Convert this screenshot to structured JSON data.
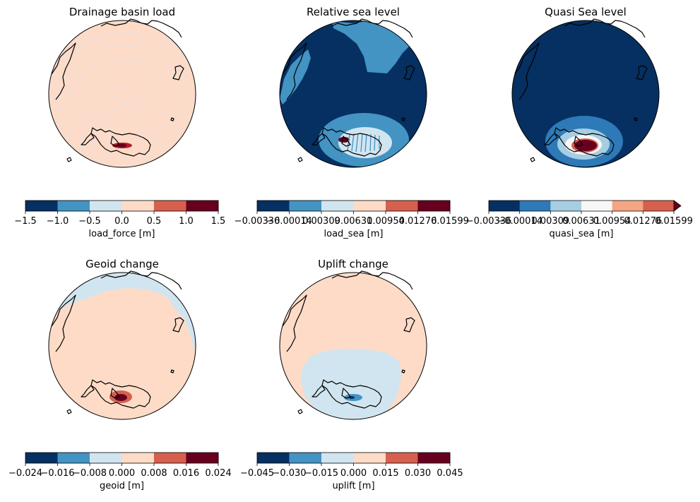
{
  "palette": {
    "rdbu6": [
      "#053061",
      "#4393c3",
      "#d1e5f0",
      "#fddbc7",
      "#d6604d",
      "#67001f"
    ],
    "rdbu7": [
      "#053061",
      "#2e7ab8",
      "#a6cee3",
      "#f7f7f7",
      "#f4a582",
      "#d6604d",
      "#67001f"
    ],
    "coast": "#000000"
  },
  "chart_data": [
    {
      "type": "map",
      "title": "Drainage basin load",
      "field_name": "load_force [m]",
      "colorbar": {
        "label": "load_force [m]",
        "levels": [
          -1.5,
          -1.0,
          -0.5,
          0.0,
          0.5,
          1.0,
          1.5
        ],
        "tick_labels": [
          "−1.5",
          "−1.0",
          "−0.5",
          "0.0",
          "0.5",
          "1.0",
          "1.5"
        ],
        "extend": "neither"
      },
      "background_level_bin": 3,
      "feature_description": "small positive anomaly over West Antarctica; field otherwise ~0"
    },
    {
      "type": "map",
      "title": "Relative sea level",
      "colorbar": {
        "label": "load_sea [m]",
        "levels": [
          -0.00336,
          -0.00014,
          0.00309,
          0.00631,
          0.00954,
          0.01276,
          0.01599
        ],
        "tick_labels": [
          "−0.00336",
          "−0.00014",
          "0.00309",
          "0.00631",
          "0.00954",
          "0.01276",
          "0.01599"
        ],
        "extend": "neither"
      },
      "background_level_bin": 0
    },
    {
      "type": "map",
      "title": "Quasi Sea level",
      "colorbar": {
        "label": "quasi_sea [m]",
        "levels": [
          -0.00336,
          -0.00014,
          0.00309,
          0.00631,
          0.00954,
          0.01276,
          0.01599
        ],
        "tick_labels": [
          "−0.00336",
          "−0.00014",
          "0.00309",
          "0.00631",
          "0.00954",
          "0.01276",
          "0.01599"
        ],
        "extend": "max"
      },
      "background_level_bin": 0
    },
    {
      "type": "map",
      "title": "Geoid change",
      "colorbar": {
        "label": "geoid [m]",
        "levels": [
          -0.024,
          -0.016,
          -0.008,
          0.0,
          0.008,
          0.016,
          0.024
        ],
        "tick_labels": [
          "−0.024",
          "−0.016",
          "−0.008",
          "0.000",
          "0.008",
          "0.016",
          "0.024"
        ],
        "extend": "neither"
      },
      "background_level_bin": 3
    },
    {
      "type": "map",
      "title": "Uplift change",
      "colorbar": {
        "label": "uplift [m]",
        "levels": [
          -0.045,
          -0.03,
          -0.015,
          0.0,
          0.015,
          0.03,
          0.045
        ],
        "tick_labels": [
          "−0.045",
          "−0.030",
          "−0.015",
          "0.000",
          "0.015",
          "0.030",
          "0.045"
        ],
        "extend": "neither"
      },
      "background_level_bin": 3
    }
  ]
}
